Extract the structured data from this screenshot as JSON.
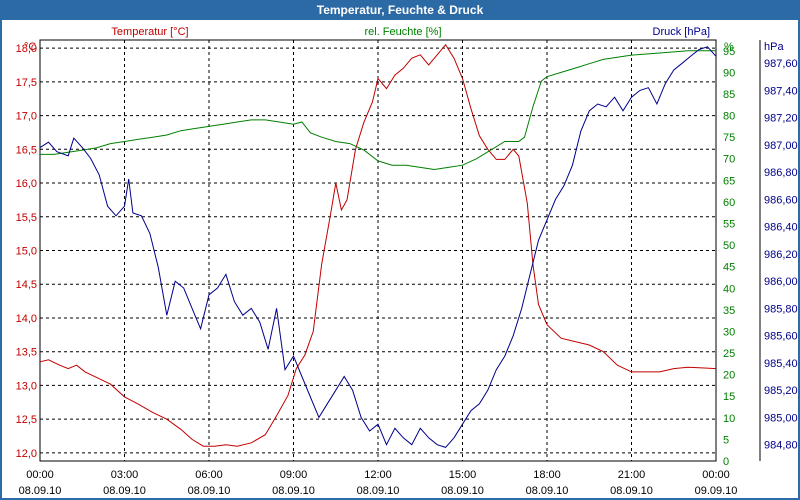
{
  "colors": {
    "temperature": "#c00000",
    "humidity": "#008000",
    "pressure": "#00008b",
    "title_bg": "#2c6aa5"
  },
  "chart_data": {
    "type": "line",
    "title": "Temperatur, Feuchte & Druck",
    "x": {
      "range": [
        0,
        24
      ],
      "ticks": [
        0,
        3,
        6,
        9,
        12,
        15,
        18,
        21,
        24
      ],
      "tick_labels": [
        [
          "00:00",
          "08.09.10"
        ],
        [
          "03:00",
          "08.09.10"
        ],
        [
          "06:00",
          "08.09.10"
        ],
        [
          "09:00",
          "08.09.10"
        ],
        [
          "12:00",
          "08.09.10"
        ],
        [
          "15:00",
          "08.09.10"
        ],
        [
          "18:00",
          "08.09.10"
        ],
        [
          "21:00",
          "08.09.10"
        ],
        [
          "00:00",
          "09.09.10"
        ]
      ]
    },
    "axes": {
      "temperature": {
        "unit_label": "°C",
        "legend": "Temperatur [°C]",
        "range": [
          11.88,
          18.12
        ],
        "ticks": [
          "12,0",
          "12,5",
          "13,0",
          "13,5",
          "14,0",
          "14,5",
          "15,0",
          "15,5",
          "16,0",
          "16,5",
          "17,0",
          "17,5",
          "18,0"
        ]
      },
      "humidity": {
        "unit_label": "%",
        "legend": "rel. Feuchte [%]",
        "range": [
          0,
          97.5
        ],
        "ticks": [
          "0",
          "5",
          "10",
          "15",
          "20",
          "25",
          "30",
          "35",
          "40",
          "45",
          "50",
          "55",
          "60",
          "65",
          "70",
          "75",
          "80",
          "85",
          "90",
          "95"
        ]
      },
      "pressure": {
        "unit_label": "hPa",
        "legend": "Druck [hPa]",
        "range": [
          984.68,
          987.77
        ],
        "ticks": [
          "984,80",
          "985,00",
          "985,20",
          "985,40",
          "985,60",
          "985,80",
          "986,00",
          "986,20",
          "986,40",
          "986,60",
          "986,80",
          "987,00",
          "987,20",
          "987,40",
          "987,60"
        ]
      }
    },
    "series": [
      {
        "name": "Temperatur [°C]",
        "axis": "temperature",
        "points": [
          [
            0,
            13.35
          ],
          [
            0.3,
            13.38
          ],
          [
            0.7,
            13.3
          ],
          [
            1,
            13.25
          ],
          [
            1.3,
            13.3
          ],
          [
            1.6,
            13.2
          ],
          [
            2,
            13.12
          ],
          [
            2.5,
            13.02
          ],
          [
            3,
            12.83
          ],
          [
            3.5,
            12.72
          ],
          [
            4,
            12.6
          ],
          [
            4.5,
            12.5
          ],
          [
            5,
            12.35
          ],
          [
            5.4,
            12.2
          ],
          [
            5.8,
            12.1
          ],
          [
            6.2,
            12.1
          ],
          [
            6.6,
            12.12
          ],
          [
            7,
            12.1
          ],
          [
            7.5,
            12.15
          ],
          [
            8,
            12.27
          ],
          [
            8.4,
            12.55
          ],
          [
            8.8,
            12.85
          ],
          [
            9.1,
            13.25
          ],
          [
            9.4,
            13.45
          ],
          [
            9.7,
            13.8
          ],
          [
            10.0,
            14.8
          ],
          [
            10.3,
            15.5
          ],
          [
            10.5,
            16.0
          ],
          [
            10.7,
            15.6
          ],
          [
            10.9,
            15.75
          ],
          [
            11.2,
            16.5
          ],
          [
            11.5,
            16.9
          ],
          [
            11.8,
            17.2
          ],
          [
            12.0,
            17.55
          ],
          [
            12.3,
            17.4
          ],
          [
            12.6,
            17.6
          ],
          [
            12.9,
            17.7
          ],
          [
            13.2,
            17.85
          ],
          [
            13.5,
            17.9
          ],
          [
            13.8,
            17.75
          ],
          [
            14.1,
            17.9
          ],
          [
            14.4,
            18.05
          ],
          [
            14.7,
            17.85
          ],
          [
            15.0,
            17.55
          ],
          [
            15.3,
            17.1
          ],
          [
            15.6,
            16.7
          ],
          [
            15.9,
            16.5
          ],
          [
            16.2,
            16.35
          ],
          [
            16.5,
            16.35
          ],
          [
            16.8,
            16.5
          ],
          [
            17.0,
            16.4
          ],
          [
            17.3,
            15.7
          ],
          [
            17.5,
            14.8
          ],
          [
            17.7,
            14.2
          ],
          [
            18.0,
            13.9
          ],
          [
            18.5,
            13.7
          ],
          [
            19.0,
            13.65
          ],
          [
            19.5,
            13.6
          ],
          [
            20.0,
            13.5
          ],
          [
            20.5,
            13.3
          ],
          [
            21.0,
            13.2
          ],
          [
            21.5,
            13.2
          ],
          [
            22.0,
            13.2
          ],
          [
            22.5,
            13.25
          ],
          [
            23.0,
            13.27
          ],
          [
            23.5,
            13.26
          ],
          [
            24,
            13.25
          ]
        ]
      },
      {
        "name": "rel. Feuchte [%]",
        "axis": "humidity",
        "points": [
          [
            0,
            71
          ],
          [
            0.5,
            71
          ],
          [
            1,
            71.5
          ],
          [
            1.5,
            72
          ],
          [
            2,
            72.5
          ],
          [
            2.5,
            73.5
          ],
          [
            3,
            74
          ],
          [
            3.5,
            74.5
          ],
          [
            4,
            75
          ],
          [
            4.5,
            75.5
          ],
          [
            5,
            76.5
          ],
          [
            5.5,
            77
          ],
          [
            6,
            77.5
          ],
          [
            6.5,
            78
          ],
          [
            7,
            78.5
          ],
          [
            7.5,
            79
          ],
          [
            8,
            79
          ],
          [
            8.5,
            78.5
          ],
          [
            9,
            78
          ],
          [
            9.3,
            78.5
          ],
          [
            9.6,
            76
          ],
          [
            10,
            75
          ],
          [
            10.5,
            74
          ],
          [
            11,
            73.5
          ],
          [
            11.5,
            72
          ],
          [
            12,
            69.5
          ],
          [
            12.5,
            68.5
          ],
          [
            13,
            68.5
          ],
          [
            13.5,
            68
          ],
          [
            14,
            67.5
          ],
          [
            14.5,
            68
          ],
          [
            15,
            68.5
          ],
          [
            15.5,
            70
          ],
          [
            16,
            72
          ],
          [
            16.5,
            74
          ],
          [
            17,
            74
          ],
          [
            17.2,
            75
          ],
          [
            17.5,
            82
          ],
          [
            17.8,
            88
          ],
          [
            18,
            89
          ],
          [
            18.5,
            90
          ],
          [
            19,
            91
          ],
          [
            19.5,
            92
          ],
          [
            20,
            93
          ],
          [
            20.5,
            93.5
          ],
          [
            21,
            94
          ],
          [
            22,
            94.5
          ],
          [
            23,
            95
          ],
          [
            24,
            95
          ]
        ]
      },
      {
        "name": "Druck [hPa]",
        "axis": "pressure",
        "points": [
          [
            0,
            986.98
          ],
          [
            0.3,
            987.02
          ],
          [
            0.6,
            986.95
          ],
          [
            1,
            986.92
          ],
          [
            1.2,
            987.05
          ],
          [
            1.5,
            986.98
          ],
          [
            1.8,
            986.9
          ],
          [
            2.1,
            986.78
          ],
          [
            2.4,
            986.55
          ],
          [
            2.7,
            986.48
          ],
          [
            3,
            986.55
          ],
          [
            3.15,
            986.75
          ],
          [
            3.3,
            986.5
          ],
          [
            3.6,
            986.48
          ],
          [
            3.9,
            986.35
          ],
          [
            4.2,
            986.1
          ],
          [
            4.5,
            985.75
          ],
          [
            4.8,
            986.0
          ],
          [
            5.1,
            985.95
          ],
          [
            5.4,
            985.8
          ],
          [
            5.7,
            985.65
          ],
          [
            6.0,
            985.9
          ],
          [
            6.3,
            985.95
          ],
          [
            6.6,
            986.05
          ],
          [
            6.9,
            985.85
          ],
          [
            7.2,
            985.75
          ],
          [
            7.5,
            985.8
          ],
          [
            7.8,
            985.7
          ],
          [
            8.1,
            985.5
          ],
          [
            8.4,
            985.8
          ],
          [
            8.7,
            985.35
          ],
          [
            9.0,
            985.45
          ],
          [
            9.3,
            985.3
          ],
          [
            9.6,
            985.15
          ],
          [
            9.9,
            985.0
          ],
          [
            10.2,
            985.1
          ],
          [
            10.5,
            985.2
          ],
          [
            10.8,
            985.3
          ],
          [
            11.1,
            985.2
          ],
          [
            11.4,
            985.0
          ],
          [
            11.7,
            984.9
          ],
          [
            12.0,
            984.95
          ],
          [
            12.3,
            984.8
          ],
          [
            12.6,
            984.92
          ],
          [
            12.9,
            984.85
          ],
          [
            13.2,
            984.8
          ],
          [
            13.5,
            984.92
          ],
          [
            13.8,
            984.85
          ],
          [
            14.1,
            984.8
          ],
          [
            14.4,
            984.78
          ],
          [
            14.7,
            984.85
          ],
          [
            15.0,
            984.95
          ],
          [
            15.3,
            985.05
          ],
          [
            15.6,
            985.1
          ],
          [
            15.9,
            985.2
          ],
          [
            16.2,
            985.35
          ],
          [
            16.5,
            985.45
          ],
          [
            16.8,
            985.6
          ],
          [
            17.1,
            985.8
          ],
          [
            17.4,
            986.05
          ],
          [
            17.7,
            986.3
          ],
          [
            18.0,
            986.45
          ],
          [
            18.3,
            986.6
          ],
          [
            18.6,
            986.7
          ],
          [
            18.9,
            986.85
          ],
          [
            19.2,
            987.1
          ],
          [
            19.5,
            987.25
          ],
          [
            19.8,
            987.3
          ],
          [
            20.1,
            987.28
          ],
          [
            20.4,
            987.35
          ],
          [
            20.7,
            987.25
          ],
          [
            21.0,
            987.35
          ],
          [
            21.3,
            987.4
          ],
          [
            21.6,
            987.42
          ],
          [
            21.9,
            987.3
          ],
          [
            22.2,
            987.45
          ],
          [
            22.5,
            987.55
          ],
          [
            22.8,
            987.6
          ],
          [
            23.1,
            987.65
          ],
          [
            23.4,
            987.7
          ],
          [
            23.7,
            987.72
          ],
          [
            24,
            987.65
          ]
        ]
      }
    ]
  }
}
